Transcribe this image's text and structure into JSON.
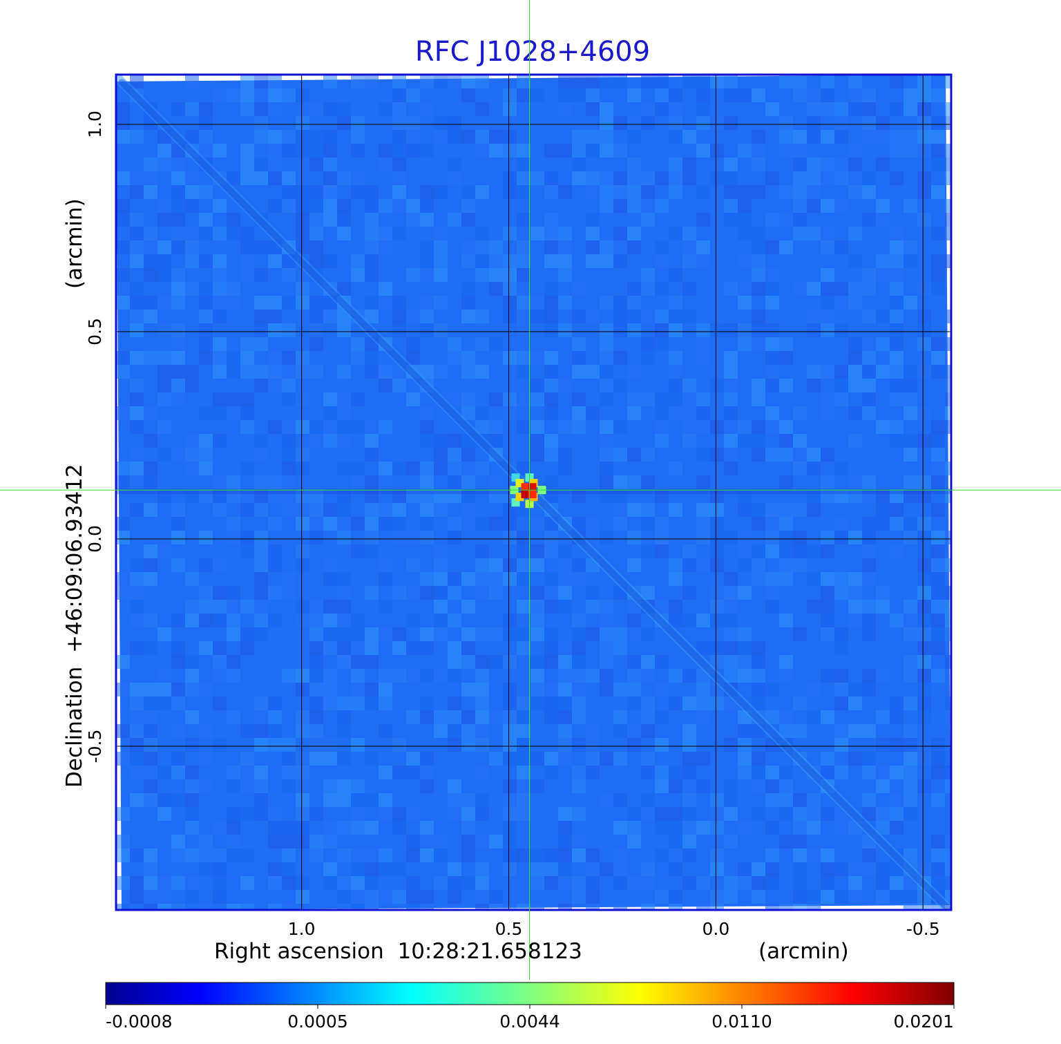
{
  "chart_data": {
    "type": "heatmap",
    "title": "RFC J1028+4609",
    "xlabel": "Right ascension  10:28:21.658123",
    "xunit": "(arcmin)",
    "ylabel": "Declination  +46:09:06.93412",
    "yunit": "(arcmin)",
    "xticks": [
      1.0,
      0.5,
      0.0,
      -0.5
    ],
    "xtick_labels": [
      "1.0",
      "0.5",
      "0.0",
      "-0.5"
    ],
    "yticks": [
      1.0,
      0.5,
      0.0,
      -0.5
    ],
    "ytick_labels": [
      "1.0",
      "0.5",
      "0.0",
      "-0.5"
    ],
    "xlim": [
      1.448,
      -0.568
    ],
    "ylim": [
      -0.895,
      1.12
    ],
    "grid": true,
    "crosshair": {
      "x": 0.45,
      "y": 0.118
    },
    "peak": {
      "x": 0.45,
      "y": 0.118,
      "value": 0.0201
    },
    "colorbar": {
      "ticks": [
        -0.0008,
        0.0005,
        0.0044,
        0.011,
        0.0201
      ],
      "tick_labels": [
        "-0.0008",
        "0.0005",
        "0.0044",
        "0.0110",
        "0.0201"
      ],
      "colormap": "jet"
    },
    "colors": {
      "frame": "#1010d0",
      "title": "#1a1acc",
      "grid": "#000000",
      "crosshair": "#33dd33",
      "background_map": "#1f6df5"
    }
  }
}
